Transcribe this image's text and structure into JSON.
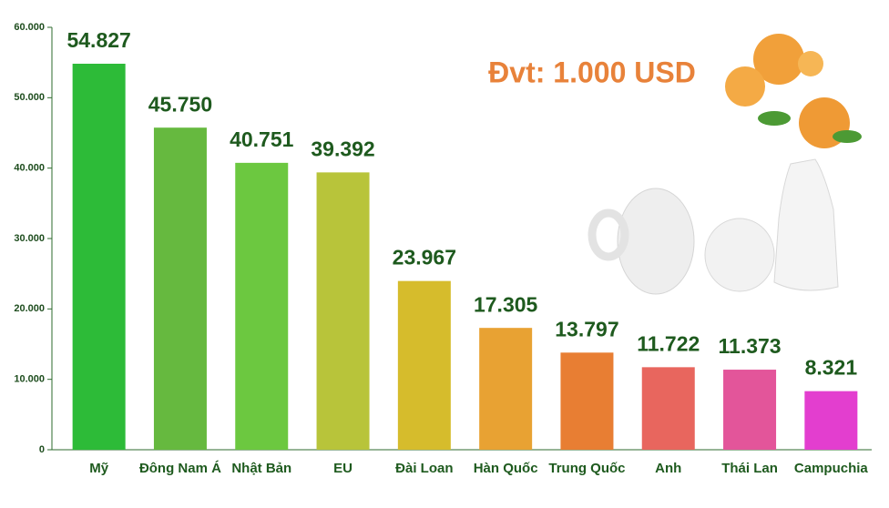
{
  "chart_data": {
    "type": "bar",
    "annotation": "Đvt: 1.000 USD",
    "categories": [
      "Mỹ",
      "Đông Nam Á",
      "Nhật Bản",
      "EU",
      "Đài Loan",
      "Hàn Quốc",
      "Trung Quốc",
      "Anh",
      "Thái Lan",
      "Campuchia"
    ],
    "values": [
      54827,
      45750,
      40751,
      39392,
      23967,
      17305,
      13797,
      11722,
      11373,
      8321
    ],
    "value_labels": [
      "54.827",
      "45.750",
      "40.751",
      "39.392",
      "23.967",
      "17.305",
      "13.797",
      "11.722",
      "11.373",
      "8.321"
    ],
    "colors": [
      "#2dbb38",
      "#66b93f",
      "#6cc840",
      "#b8c43a",
      "#d6bc2c",
      "#e8a233",
      "#e87e33",
      "#e8665e",
      "#e3559a",
      "#e33ecf"
    ],
    "ylim": [
      0,
      60000
    ],
    "yticks": [
      0,
      {
        "value": 10000,
        "label": "10.000"
      },
      {
        "value": 20000,
        "label": "20.000"
      },
      {
        "value": 30000,
        "label": "30.000"
      },
      {
        "value": 40000,
        "label": "40.000"
      },
      {
        "value": 50000,
        "label": "50.000"
      },
      {
        "value": 60000,
        "label": "60.000"
      }
    ]
  }
}
